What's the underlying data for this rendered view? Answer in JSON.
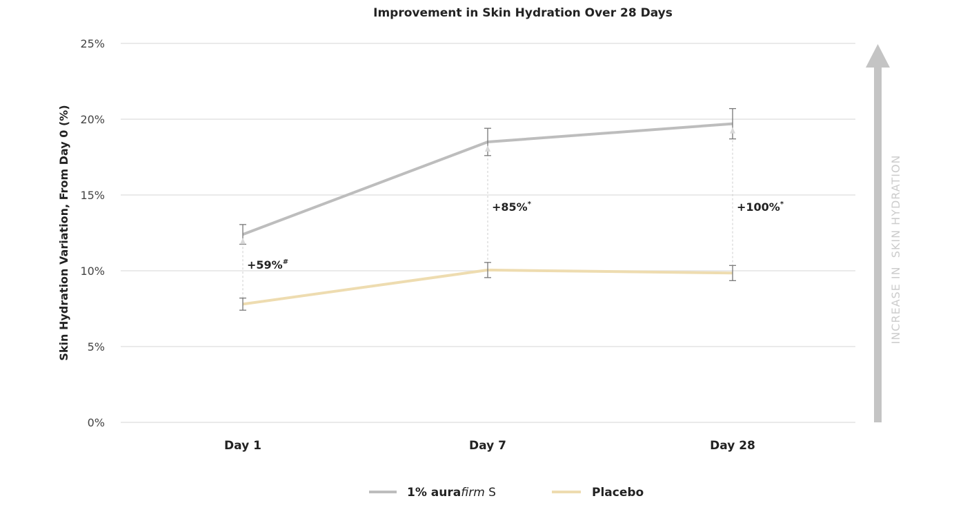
{
  "chart_data": {
    "type": "line",
    "title": "Improvement in Skin Hydration Over 28 Days",
    "xlabel": "",
    "ylabel": "Skin Hydration Variation, From Day 0 (%)",
    "categories": [
      "Day 1",
      "Day 7",
      "Day 28"
    ],
    "ylim": [
      0,
      25
    ],
    "yticks": [
      0,
      5,
      10,
      15,
      20,
      25
    ],
    "ytick_labels": [
      "0%",
      "5%",
      "10%",
      "15%",
      "20%",
      "25%"
    ],
    "grid": true,
    "legend_position": "bottom-center",
    "series": [
      {
        "name": "1% aurafirm S",
        "legend_bold": "1% aura",
        "legend_italic": "firm",
        "legend_rest": " S",
        "color": "#bdbdbd",
        "values": [
          12.4,
          18.5,
          19.7
        ],
        "errors": [
          0.65,
          0.9,
          1.0
        ]
      },
      {
        "name": "Placebo",
        "color": "#eedcb0",
        "values": [
          7.8,
          10.05,
          9.85
        ],
        "errors": [
          0.4,
          0.5,
          0.5
        ]
      }
    ],
    "annotations": [
      {
        "category": "Day 1",
        "text": "+59%",
        "mark": "#"
      },
      {
        "category": "Day 7",
        "text": "+85%",
        "mark": "*"
      },
      {
        "category": "Day 28",
        "text": "+100%",
        "mark": "*"
      }
    ],
    "side_arrow_label": "INCREASE IN  SKIN HYDRATION",
    "side_arrow_color": "#c4c4c4"
  }
}
